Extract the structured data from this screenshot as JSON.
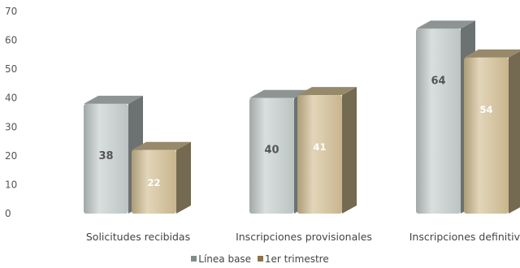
{
  "chart_data": {
    "type": "bar",
    "categories": [
      "Solicitudes recibidas",
      "Inscripciones provisionales",
      "Inscripciones definitivas"
    ],
    "series": [
      {
        "name": "Línea base",
        "values": [
          38,
          40,
          64
        ],
        "color": "#c5cdcd",
        "label_color": "#555555"
      },
      {
        "name": "1er trimestre",
        "values": [
          22,
          41,
          54
        ],
        "color": "#d2bf94",
        "label_color": "#ffffff"
      }
    ],
    "y_ticks": [
      "0",
      "10",
      "20",
      "30",
      "40",
      "50",
      "60",
      "70"
    ],
    "ylim": [
      0,
      70
    ],
    "grid": false,
    "legend": "bottom",
    "style": "3d-bars"
  }
}
